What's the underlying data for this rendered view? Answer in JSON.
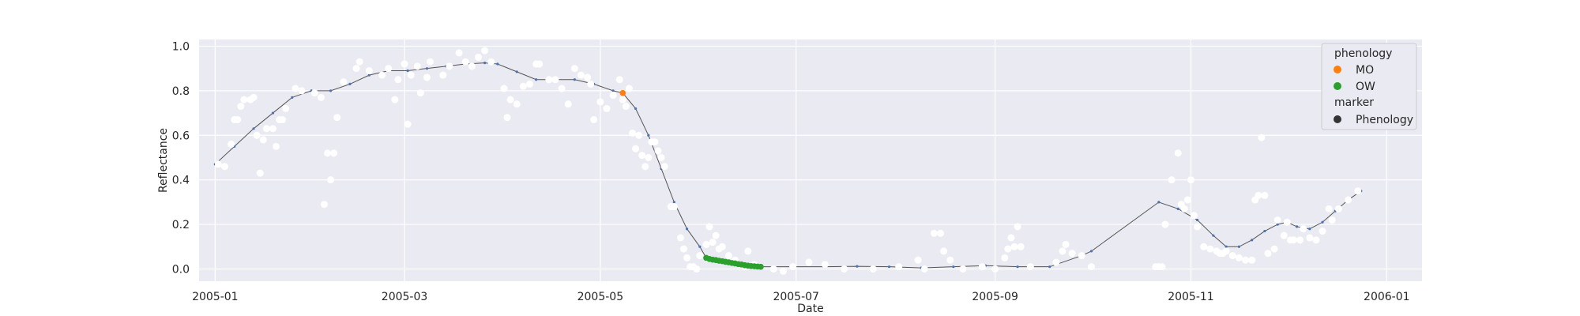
{
  "chart_data": {
    "type": "scatter",
    "title": "",
    "xlabel": "Date",
    "ylabel": "Reflectance",
    "xlim": [
      "2004-12-27",
      "2006-01-12"
    ],
    "ylim": [
      -0.055,
      1.03
    ],
    "x_ticks": [
      "2005-01",
      "2005-03",
      "2005-05",
      "2005-07",
      "2005-09",
      "2005-11",
      "2006-01"
    ],
    "x_tick_dates": [
      "2005-01-01",
      "2005-03-01",
      "2005-05-01",
      "2005-07-01",
      "2005-09-01",
      "2005-11-01",
      "2006-01-01"
    ],
    "y_ticks": [
      "0.0",
      "0.2",
      "0.4",
      "0.6",
      "0.8",
      "1.0"
    ],
    "y_tick_values": [
      0.0,
      0.2,
      0.4,
      0.6,
      0.8,
      1.0
    ],
    "grid": true,
    "background_color": "#eaeaf2",
    "grid_color": "#ffffff",
    "observations": {
      "color": "#ffffff",
      "points": [
        [
          "2005-01-02",
          0.47
        ],
        [
          "2005-01-04",
          0.46
        ],
        [
          "2005-01-06",
          0.56
        ],
        [
          "2005-01-07",
          0.67
        ],
        [
          "2005-01-08",
          0.67
        ],
        [
          "2005-01-09",
          0.73
        ],
        [
          "2005-01-10",
          0.76
        ],
        [
          "2005-01-12",
          0.76
        ],
        [
          "2005-01-13",
          0.77
        ],
        [
          "2005-01-14",
          0.6
        ],
        [
          "2005-01-15",
          0.43
        ],
        [
          "2005-01-16",
          0.58
        ],
        [
          "2005-01-17",
          0.63
        ],
        [
          "2005-01-19",
          0.63
        ],
        [
          "2005-01-20",
          0.55
        ],
        [
          "2005-01-21",
          0.67
        ],
        [
          "2005-01-22",
          0.67
        ],
        [
          "2005-01-23",
          0.72
        ],
        [
          "2005-01-26",
          0.81
        ],
        [
          "2005-01-28",
          0.8
        ],
        [
          "2005-02-01",
          0.79
        ],
        [
          "2005-02-03",
          0.77
        ],
        [
          "2005-02-04",
          0.29
        ],
        [
          "2005-02-05",
          0.52
        ],
        [
          "2005-02-06",
          0.4
        ],
        [
          "2005-02-07",
          0.52
        ],
        [
          "2005-02-08",
          0.68
        ],
        [
          "2005-02-10",
          0.84
        ],
        [
          "2005-02-14",
          0.9
        ],
        [
          "2005-02-15",
          0.93
        ],
        [
          "2005-02-18",
          0.89
        ],
        [
          "2005-02-22",
          0.87
        ],
        [
          "2005-02-24",
          0.9
        ],
        [
          "2005-02-26",
          0.76
        ],
        [
          "2005-02-27",
          0.85
        ],
        [
          "2005-03-01",
          0.92
        ],
        [
          "2005-03-02",
          0.65
        ],
        [
          "2005-03-03",
          0.87
        ],
        [
          "2005-03-05",
          0.91
        ],
        [
          "2005-03-06",
          0.79
        ],
        [
          "2005-03-08",
          0.86
        ],
        [
          "2005-03-09",
          0.93
        ],
        [
          "2005-03-13",
          0.87
        ],
        [
          "2005-03-15",
          0.91
        ],
        [
          "2005-03-18",
          0.97
        ],
        [
          "2005-03-20",
          0.93
        ],
        [
          "2005-03-22",
          0.91
        ],
        [
          "2005-03-24",
          0.95
        ],
        [
          "2005-03-26",
          0.98
        ],
        [
          "2005-03-28",
          0.93
        ],
        [
          "2005-04-01",
          0.81
        ],
        [
          "2005-04-02",
          0.68
        ],
        [
          "2005-04-03",
          0.76
        ],
        [
          "2005-04-05",
          0.74
        ],
        [
          "2005-04-07",
          0.82
        ],
        [
          "2005-04-09",
          0.83
        ],
        [
          "2005-04-11",
          0.92
        ],
        [
          "2005-04-12",
          0.92
        ],
        [
          "2005-04-15",
          0.85
        ],
        [
          "2005-04-17",
          0.85
        ],
        [
          "2005-04-19",
          0.81
        ],
        [
          "2005-04-21",
          0.74
        ],
        [
          "2005-04-23",
          0.9
        ],
        [
          "2005-04-25",
          0.87
        ],
        [
          "2005-04-27",
          0.86
        ],
        [
          "2005-04-28",
          0.83
        ],
        [
          "2005-04-29",
          0.67
        ],
        [
          "2005-05-01",
          0.75
        ],
        [
          "2005-05-03",
          0.72
        ],
        [
          "2005-05-05",
          0.78
        ],
        [
          "2005-05-07",
          0.85
        ],
        [
          "2005-05-08",
          0.76
        ],
        [
          "2005-05-09",
          0.73
        ],
        [
          "2005-05-10",
          0.81
        ],
        [
          "2005-05-11",
          0.61
        ],
        [
          "2005-05-12",
          0.54
        ],
        [
          "2005-05-13",
          0.6
        ],
        [
          "2005-05-14",
          0.51
        ],
        [
          "2005-05-15",
          0.46
        ],
        [
          "2005-05-16",
          0.5
        ],
        [
          "2005-05-17",
          0.57
        ],
        [
          "2005-05-18",
          0.57
        ],
        [
          "2005-05-19",
          0.53
        ],
        [
          "2005-05-20",
          0.5
        ],
        [
          "2005-05-21",
          0.46
        ],
        [
          "2005-05-23",
          0.28
        ],
        [
          "2005-05-24",
          0.28
        ],
        [
          "2005-05-26",
          0.14
        ],
        [
          "2005-05-27",
          0.09
        ],
        [
          "2005-05-28",
          0.05
        ],
        [
          "2005-05-29",
          0.01
        ],
        [
          "2005-05-30",
          0.01
        ],
        [
          "2005-05-31",
          0.0
        ],
        [
          "2005-06-01",
          0.06
        ],
        [
          "2005-06-03",
          0.11
        ],
        [
          "2005-06-04",
          0.19
        ],
        [
          "2005-06-05",
          0.12
        ],
        [
          "2005-06-06",
          0.15
        ],
        [
          "2005-06-07",
          0.09
        ],
        [
          "2005-06-08",
          0.1
        ],
        [
          "2005-06-10",
          0.06
        ],
        [
          "2005-06-12",
          0.04
        ],
        [
          "2005-06-15",
          0.01
        ],
        [
          "2005-06-16",
          0.08
        ],
        [
          "2005-06-18",
          0.02
        ],
        [
          "2005-06-24",
          0.0
        ],
        [
          "2005-06-27",
          -0.01
        ],
        [
          "2005-06-30",
          0.01
        ],
        [
          "2005-07-05",
          0.03
        ],
        [
          "2005-07-10",
          0.02
        ],
        [
          "2005-07-16",
          0.0
        ],
        [
          "2005-07-25",
          0.0
        ],
        [
          "2005-08-02",
          0.01
        ],
        [
          "2005-08-08",
          0.04
        ],
        [
          "2005-08-10",
          0.0
        ],
        [
          "2005-08-13",
          0.16
        ],
        [
          "2005-08-15",
          0.16
        ],
        [
          "2005-08-16",
          0.08
        ],
        [
          "2005-08-18",
          0.04
        ],
        [
          "2005-08-22",
          0.0
        ],
        [
          "2005-08-28",
          0.01
        ],
        [
          "2005-09-01",
          0.0
        ],
        [
          "2005-09-04",
          0.05
        ],
        [
          "2005-09-05",
          0.09
        ],
        [
          "2005-09-06",
          0.14
        ],
        [
          "2005-09-07",
          0.1
        ],
        [
          "2005-09-08",
          0.19
        ],
        [
          "2005-09-09",
          0.1
        ],
        [
          "2005-09-12",
          0.01
        ],
        [
          "2005-09-20",
          0.03
        ],
        [
          "2005-09-22",
          0.08
        ],
        [
          "2005-09-23",
          0.11
        ],
        [
          "2005-09-25",
          0.07
        ],
        [
          "2005-09-28",
          0.06
        ],
        [
          "2005-10-01",
          0.01
        ],
        [
          "2005-10-21",
          0.01
        ],
        [
          "2005-10-22",
          0.01
        ],
        [
          "2005-10-23",
          0.01
        ],
        [
          "2005-10-24",
          0.2
        ],
        [
          "2005-10-26",
          0.4
        ],
        [
          "2005-10-28",
          0.52
        ],
        [
          "2005-10-29",
          0.29
        ],
        [
          "2005-10-30",
          0.27
        ],
        [
          "2005-10-31",
          0.31
        ],
        [
          "2005-11-01",
          0.4
        ],
        [
          "2005-11-02",
          0.24
        ],
        [
          "2005-11-03",
          0.19
        ],
        [
          "2005-11-05",
          0.1
        ],
        [
          "2005-11-07",
          0.09
        ],
        [
          "2005-11-09",
          0.08
        ],
        [
          "2005-11-10",
          0.07
        ],
        [
          "2005-11-11",
          0.07
        ],
        [
          "2005-11-12",
          0.08
        ],
        [
          "2005-11-14",
          0.06
        ],
        [
          "2005-11-16",
          0.05
        ],
        [
          "2005-11-18",
          0.04
        ],
        [
          "2005-11-20",
          0.04
        ],
        [
          "2005-11-21",
          0.31
        ],
        [
          "2005-11-22",
          0.33
        ],
        [
          "2005-11-23",
          0.59
        ],
        [
          "2005-11-24",
          0.33
        ],
        [
          "2005-11-25",
          0.07
        ],
        [
          "2005-11-27",
          0.09
        ],
        [
          "2005-11-28",
          0.22
        ],
        [
          "2005-11-30",
          0.15
        ],
        [
          "2005-12-01",
          0.21
        ],
        [
          "2005-12-02",
          0.13
        ],
        [
          "2005-12-03",
          0.13
        ],
        [
          "2005-12-05",
          0.13
        ],
        [
          "2005-12-06",
          0.18
        ],
        [
          "2005-12-08",
          0.14
        ],
        [
          "2005-12-10",
          0.13
        ],
        [
          "2005-12-12",
          0.17
        ],
        [
          "2005-12-14",
          0.27
        ],
        [
          "2005-12-15",
          0.22
        ],
        [
          "2005-12-17",
          0.27
        ],
        [
          "2005-12-20",
          0.31
        ],
        [
          "2005-12-23",
          0.35
        ]
      ]
    },
    "fit_curve": {
      "line_color": "#555555",
      "marker_color": "#4c72b0",
      "points": [
        [
          "2005-01-01",
          0.47
        ],
        [
          "2005-01-07",
          0.55
        ],
        [
          "2005-01-13",
          0.63
        ],
        [
          "2005-01-19",
          0.7
        ],
        [
          "2005-01-25",
          0.77
        ],
        [
          "2005-01-31",
          0.8
        ],
        [
          "2005-02-06",
          0.8
        ],
        [
          "2005-02-12",
          0.83
        ],
        [
          "2005-02-18",
          0.87
        ],
        [
          "2005-02-24",
          0.89
        ],
        [
          "2005-03-02",
          0.89
        ],
        [
          "2005-03-08",
          0.9
        ],
        [
          "2005-03-14",
          0.91
        ],
        [
          "2005-03-20",
          0.92
        ],
        [
          "2005-03-26",
          0.925
        ],
        [
          "2005-03-30",
          0.92
        ],
        [
          "2005-04-05",
          0.885
        ],
        [
          "2005-04-11",
          0.85
        ],
        [
          "2005-04-17",
          0.85
        ],
        [
          "2005-04-23",
          0.85
        ],
        [
          "2005-04-29",
          0.83
        ],
        [
          "2005-05-05",
          0.8
        ],
        [
          "2005-05-08",
          0.79
        ],
        [
          "2005-05-12",
          0.72
        ],
        [
          "2005-05-16",
          0.6
        ],
        [
          "2005-05-20",
          0.45
        ],
        [
          "2005-05-24",
          0.3
        ],
        [
          "2005-05-28",
          0.18
        ],
        [
          "2005-06-01",
          0.1
        ],
        [
          "2005-06-03",
          0.05
        ],
        [
          "2005-06-08",
          0.035
        ],
        [
          "2005-06-14",
          0.02
        ],
        [
          "2005-06-20",
          0.01
        ],
        [
          "2005-06-30",
          0.01
        ],
        [
          "2005-07-10",
          0.01
        ],
        [
          "2005-07-20",
          0.012
        ],
        [
          "2005-07-30",
          0.01
        ],
        [
          "2005-08-09",
          0.005
        ],
        [
          "2005-08-19",
          0.01
        ],
        [
          "2005-08-29",
          0.015
        ],
        [
          "2005-09-08",
          0.01
        ],
        [
          "2005-09-18",
          0.01
        ],
        [
          "2005-09-28",
          0.06
        ],
        [
          "2005-10-01",
          0.08
        ],
        [
          "2005-10-22",
          0.3
        ],
        [
          "2005-10-28",
          0.27
        ],
        [
          "2005-11-03",
          0.22
        ],
        [
          "2005-11-08",
          0.15
        ],
        [
          "2005-11-12",
          0.1
        ],
        [
          "2005-11-16",
          0.1
        ],
        [
          "2005-11-20",
          0.13
        ],
        [
          "2005-11-24",
          0.17
        ],
        [
          "2005-11-28",
          0.2
        ],
        [
          "2005-12-01",
          0.21
        ],
        [
          "2005-12-04",
          0.19
        ],
        [
          "2005-12-08",
          0.18
        ],
        [
          "2005-12-12",
          0.21
        ],
        [
          "2005-12-16",
          0.26
        ],
        [
          "2005-12-20",
          0.31
        ],
        [
          "2005-12-24",
          0.35
        ]
      ]
    },
    "series": [
      {
        "name": "MO",
        "color": "#ff7f0e",
        "points": [
          [
            "2005-05-08",
            0.79
          ]
        ]
      },
      {
        "name": "OW",
        "color": "#2ca02c",
        "points": [
          [
            "2005-06-03",
            0.05
          ],
          [
            "2005-06-04",
            0.045
          ],
          [
            "2005-06-05",
            0.042
          ],
          [
            "2005-06-06",
            0.04
          ],
          [
            "2005-06-07",
            0.037
          ],
          [
            "2005-06-08",
            0.035
          ],
          [
            "2005-06-09",
            0.032
          ],
          [
            "2005-06-10",
            0.03
          ],
          [
            "2005-06-11",
            0.027
          ],
          [
            "2005-06-12",
            0.025
          ],
          [
            "2005-06-13",
            0.022
          ],
          [
            "2005-06-14",
            0.02
          ],
          [
            "2005-06-15",
            0.017
          ],
          [
            "2005-06-16",
            0.015
          ],
          [
            "2005-06-17",
            0.013
          ],
          [
            "2005-06-18",
            0.012
          ],
          [
            "2005-06-19",
            0.011
          ],
          [
            "2005-06-20",
            0.01
          ]
        ]
      }
    ],
    "legend": {
      "placement": "top-right",
      "hue_title": "phenology",
      "style_title": "marker",
      "items": [
        {
          "label": "MO",
          "color": "#ff7f0e"
        },
        {
          "label": "OW",
          "color": "#2ca02c"
        }
      ],
      "style_items": [
        {
          "label": "Phenology",
          "color": "#333333"
        }
      ]
    }
  }
}
